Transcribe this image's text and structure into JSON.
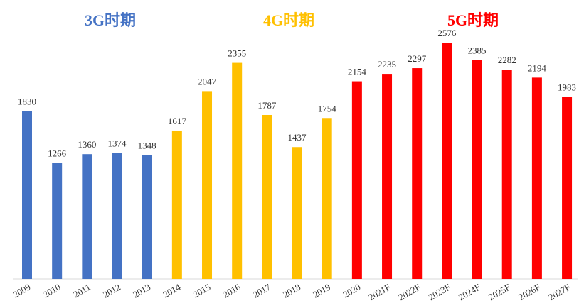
{
  "chart_data": {
    "type": "bar",
    "categories": [
      "2009",
      "2010",
      "2011",
      "2012",
      "2013",
      "2014",
      "2015",
      "2016",
      "2017",
      "2018",
      "2019",
      "2020",
      "2021F",
      "2022F",
      "2023F",
      "2024F",
      "2025F",
      "2026F",
      "2027F"
    ],
    "values": [
      1830,
      1266,
      1360,
      1374,
      1348,
      1617,
      2047,
      2355,
      1787,
      1437,
      1754,
      2154,
      2235,
      2297,
      2576,
      2385,
      2282,
      2194,
      1983
    ],
    "colors": [
      "#4472c4",
      "#4472c4",
      "#4472c4",
      "#4472c4",
      "#4472c4",
      "#ffc000",
      "#ffc000",
      "#ffc000",
      "#ffc000",
      "#ffc000",
      "#ffc000",
      "#ff0000",
      "#ff0000",
      "#ff0000",
      "#ff0000",
      "#ff0000",
      "#ff0000",
      "#ff0000",
      "#ff0000"
    ],
    "annotations": [
      {
        "text": "3G时期",
        "color": "#4472c4"
      },
      {
        "text": "4G时期",
        "color": "#ffc000"
      },
      {
        "text": "5G时期",
        "color": "#ff0000"
      }
    ]
  }
}
